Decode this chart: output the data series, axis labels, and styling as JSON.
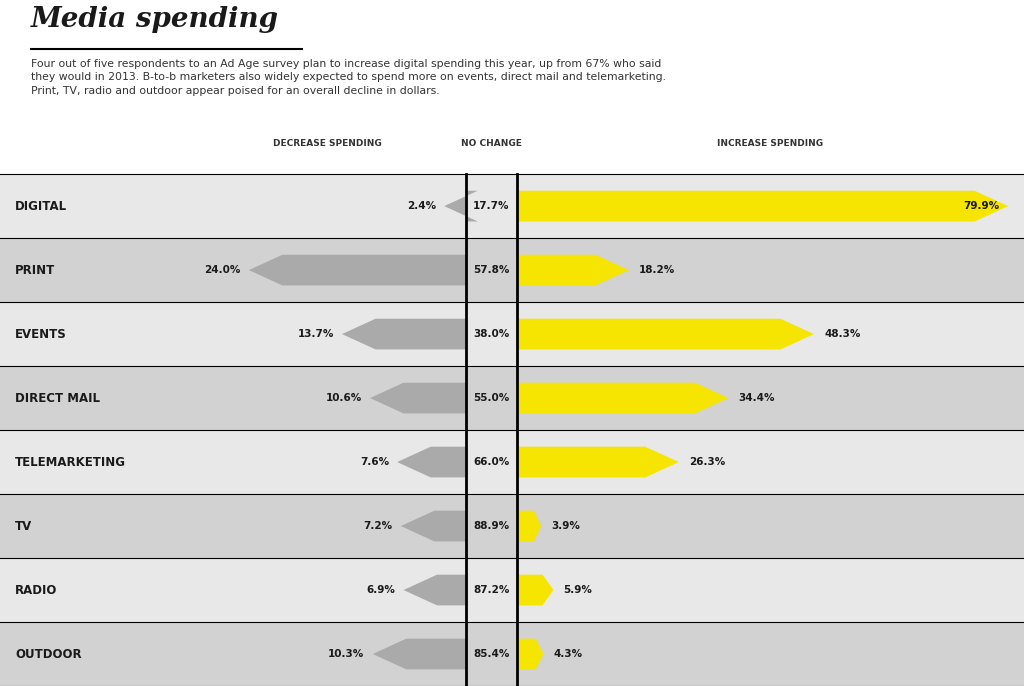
{
  "title": "Media spending",
  "subtitle": "Four out of five respondents to an Ad Age survey plan to increase digital spending this year, up from 67% who said\nthey would in 2013. B-to-b marketers also widely expected to spend more on events, direct mail and telemarketing.\nPrint, TV, radio and outdoor appear poised for an overall decline in dollars.",
  "categories": [
    "DIGITAL",
    "PRINT",
    "EVENTS",
    "DIRECT MAIL",
    "TELEMARKETING",
    "TV",
    "RADIO",
    "OUTDOOR"
  ],
  "decrease": [
    2.4,
    24.0,
    13.7,
    10.6,
    7.6,
    7.2,
    6.9,
    10.3
  ],
  "no_change": [
    17.7,
    57.8,
    38.0,
    55.0,
    66.0,
    88.9,
    87.2,
    85.4
  ],
  "increase": [
    79.9,
    18.2,
    48.3,
    34.4,
    26.3,
    3.9,
    5.9,
    4.3
  ],
  "decrease_color": "#aaaaaa",
  "increase_color": "#f5e500",
  "row_bg_odd": "#e8e8e8",
  "row_bg_even": "#d2d2d2",
  "header_label_decrease": "DECREASE SPENDING",
  "header_label_nochange": "NO CHANGE",
  "header_label_increase": "INCREASE SPENDING",
  "bg_color": "#ffffff",
  "text_color": "#1a1a1a",
  "title_color": "#1a1a1a"
}
